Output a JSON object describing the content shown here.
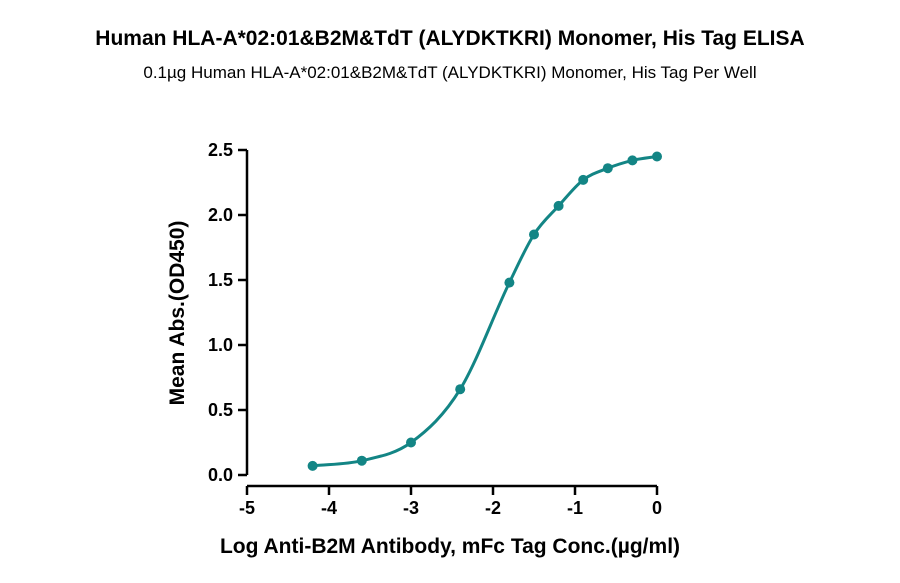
{
  "chart_data": {
    "type": "scatter",
    "title": "Human HLA-A*02:01&B2M&TdT (ALYDKTKRI) Monomer, His Tag ELISA",
    "subtitle": "0.1µg Human HLA-A*02:01&B2M&TdT (ALYDKTKRI) Monomer, His Tag Per Well",
    "xlabel": "Log Anti-B2M Antibody, mFc Tag Conc.(µg/ml)",
    "ylabel": "Mean Abs.(OD450)",
    "xlim": [
      -5,
      0
    ],
    "ylim": [
      0,
      2.5
    ],
    "x_ticks": [
      "-5",
      "-4",
      "-3",
      "-2",
      "-1",
      "0"
    ],
    "y_ticks": [
      "0.0",
      "0.5",
      "1.0",
      "1.5",
      "2.0",
      "2.5"
    ],
    "grid": false,
    "fit": "four-parameter logistic curve",
    "series": [
      {
        "color": "#138585",
        "x": [
          -4.2,
          -3.6,
          -3.0,
          -2.4,
          -1.8,
          -1.5,
          -1.2,
          -0.9,
          -0.6,
          -0.3,
          0.0
        ],
        "y": [
          0.07,
          0.11,
          0.25,
          0.66,
          1.48,
          1.85,
          2.07,
          2.27,
          2.36,
          2.42,
          2.45
        ]
      }
    ]
  }
}
